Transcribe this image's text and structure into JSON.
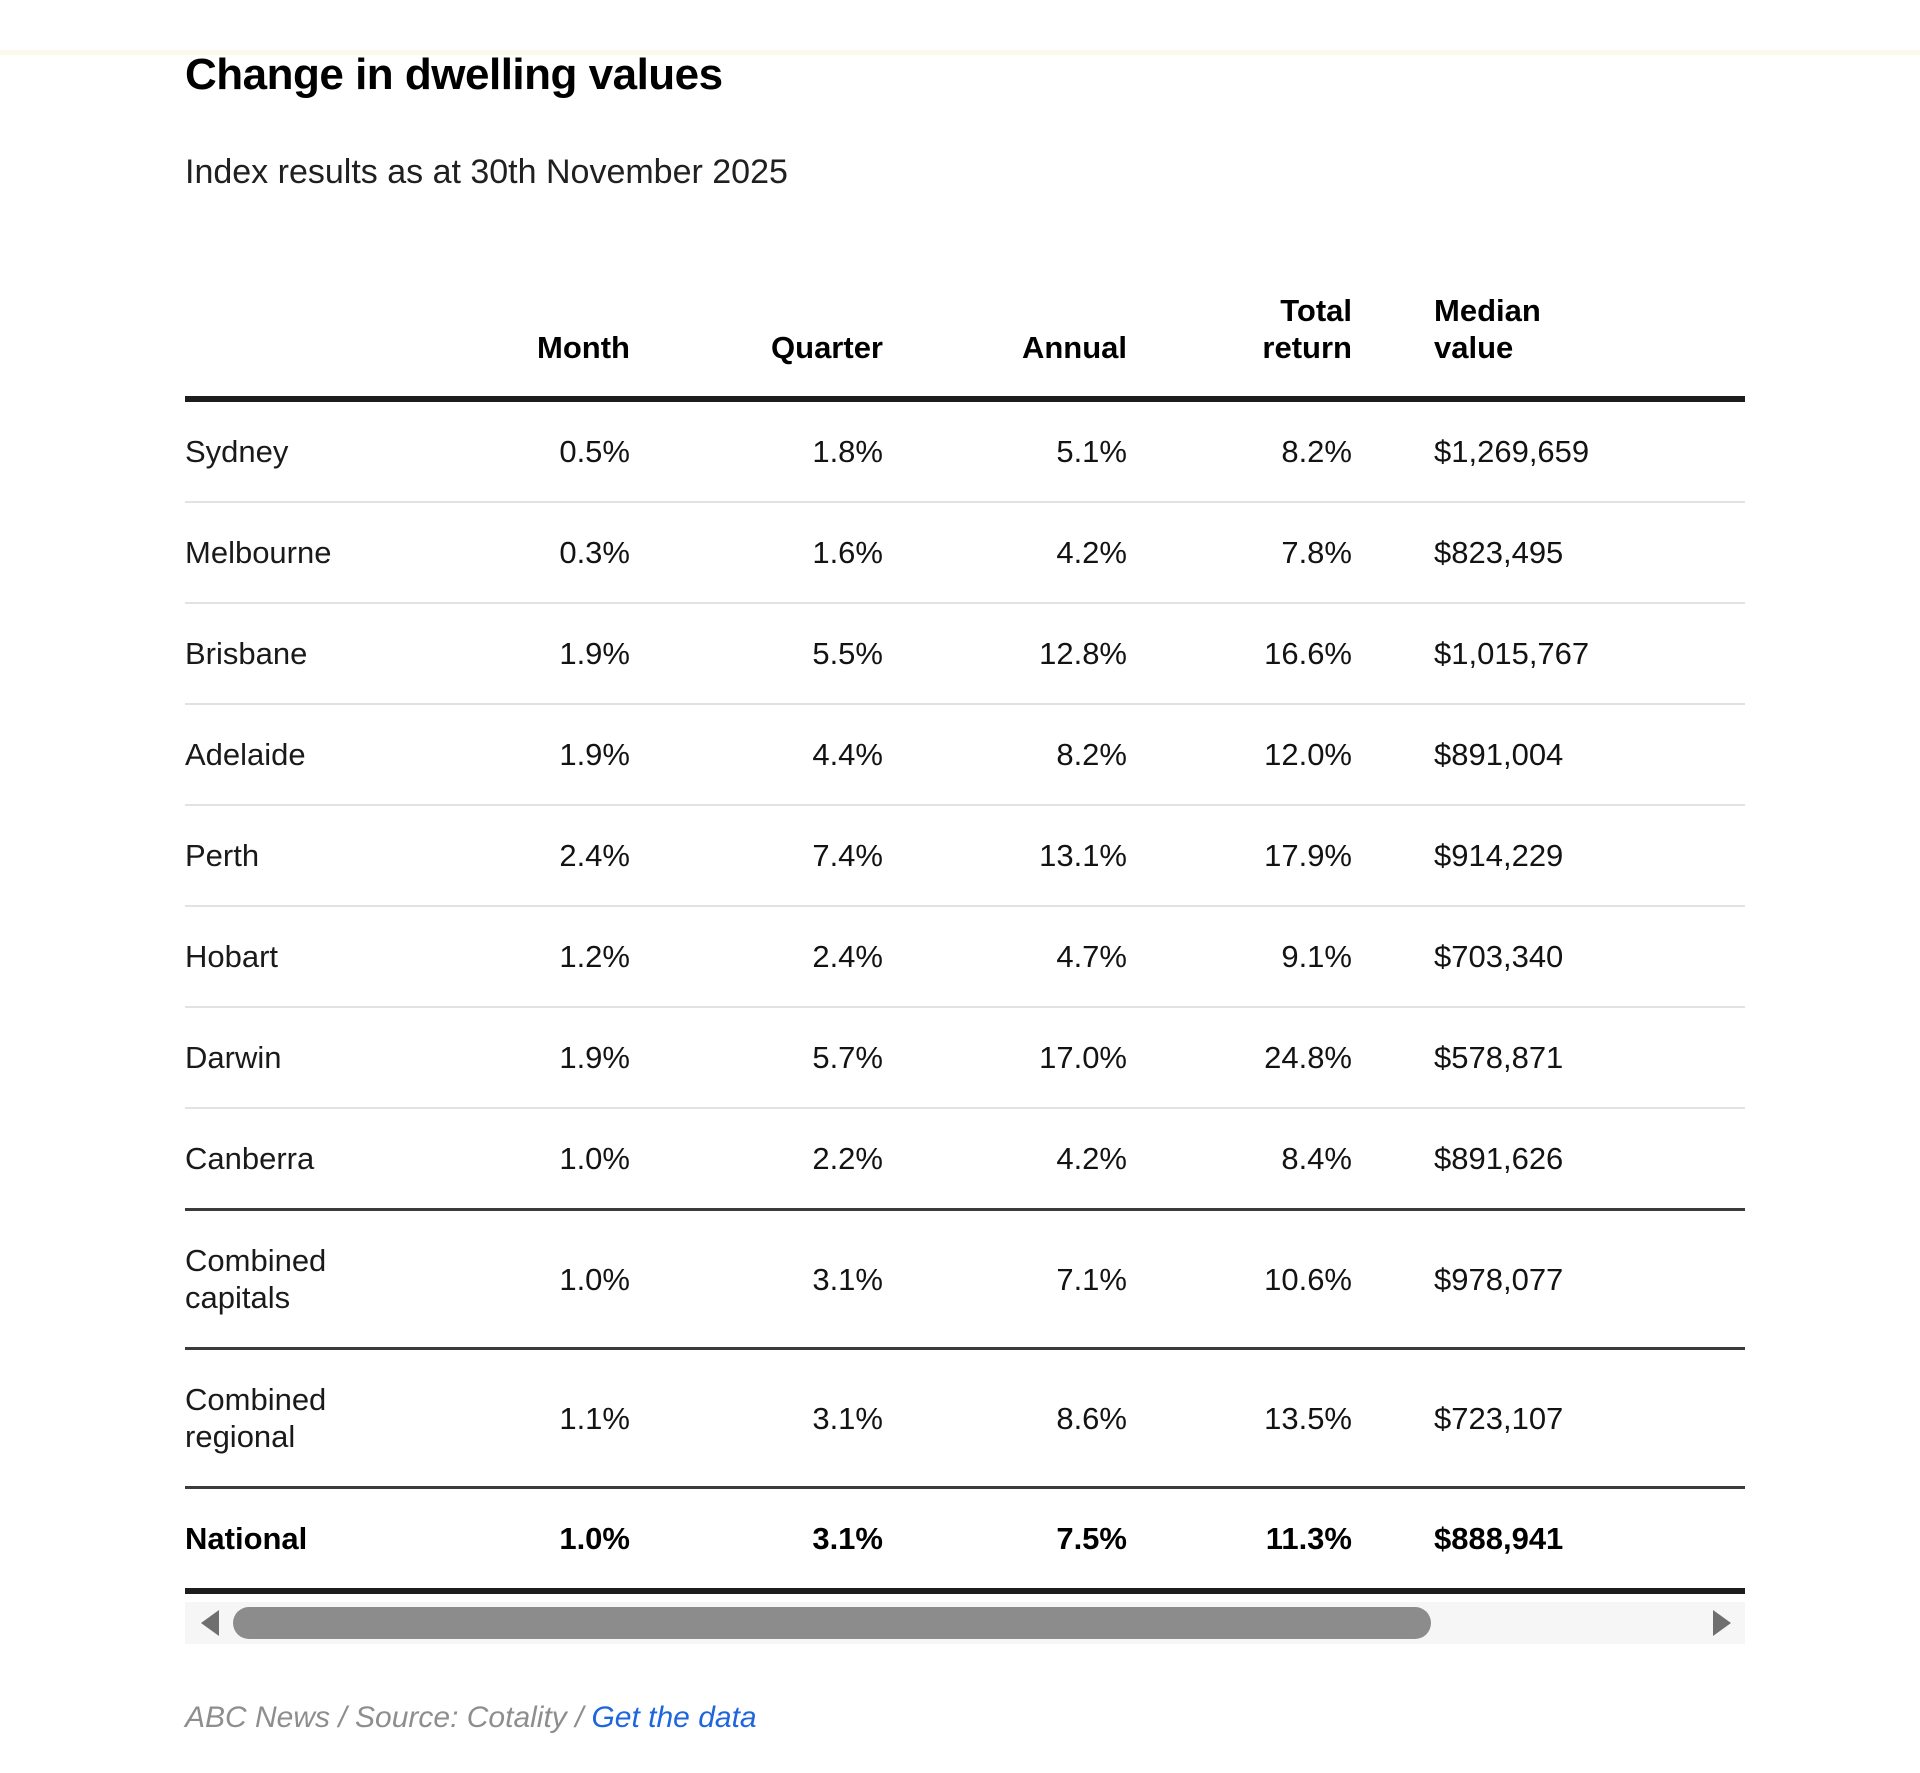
{
  "header": {
    "title": "Change in dwelling values",
    "subtitle": "Index results as at 30th November 2025"
  },
  "chart_data": {
    "type": "table",
    "title": "Change in dwelling values",
    "subtitle": "Index results as at 30th November 2025",
    "columns": [
      "",
      "Month",
      "Quarter",
      "Annual",
      "Total return",
      "Median value"
    ],
    "rows": [
      {
        "region": "Sydney",
        "values": [
          "0.5%",
          "1.8%",
          "5.1%",
          "8.2%",
          "$1,269,659"
        ],
        "divider_after": "light",
        "bold": false
      },
      {
        "region": "Melbourne",
        "values": [
          "0.3%",
          "1.6%",
          "4.2%",
          "7.8%",
          "$823,495"
        ],
        "divider_after": "light",
        "bold": false
      },
      {
        "region": "Brisbane",
        "values": [
          "1.9%",
          "5.5%",
          "12.8%",
          "16.6%",
          "$1,015,767"
        ],
        "divider_after": "light",
        "bold": false
      },
      {
        "region": "Adelaide",
        "values": [
          "1.9%",
          "4.4%",
          "8.2%",
          "12.0%",
          "$891,004"
        ],
        "divider_after": "light",
        "bold": false
      },
      {
        "region": "Perth",
        "values": [
          "2.4%",
          "7.4%",
          "13.1%",
          "17.9%",
          "$914,229"
        ],
        "divider_after": "light",
        "bold": false
      },
      {
        "region": "Hobart",
        "values": [
          "1.2%",
          "2.4%",
          "4.7%",
          "9.1%",
          "$703,340"
        ],
        "divider_after": "light",
        "bold": false
      },
      {
        "region": "Darwin",
        "values": [
          "1.9%",
          "5.7%",
          "17.0%",
          "24.8%",
          "$578,871"
        ],
        "divider_after": "light",
        "bold": false
      },
      {
        "region": "Canberra",
        "values": [
          "1.0%",
          "2.2%",
          "4.2%",
          "8.4%",
          "$891,626"
        ],
        "divider_after": "dark",
        "bold": false
      },
      {
        "region": "Combined capitals",
        "values": [
          "1.0%",
          "3.1%",
          "7.1%",
          "10.6%",
          "$978,077"
        ],
        "divider_after": "dark",
        "bold": false
      },
      {
        "region": "Combined regional",
        "values": [
          "1.1%",
          "3.1%",
          "8.6%",
          "13.5%",
          "$723,107"
        ],
        "divider_after": "dark",
        "bold": false
      },
      {
        "region": "National",
        "values": [
          "1.0%",
          "3.1%",
          "7.5%",
          "11.3%",
          "$888,941"
        ],
        "divider_after": "none",
        "bold": true
      }
    ]
  },
  "footer": {
    "credit": "ABC News / Source: Cotality /",
    "link_label": "Get the data"
  },
  "colors": {
    "link_blue": "#1e66dd",
    "accent_strip_cream": "#fdf8ec",
    "scroll_thumb_gray": "#8c8c8c",
    "dark_rule": "#1d1d1d",
    "light_rule": "#e2e2e2"
  }
}
